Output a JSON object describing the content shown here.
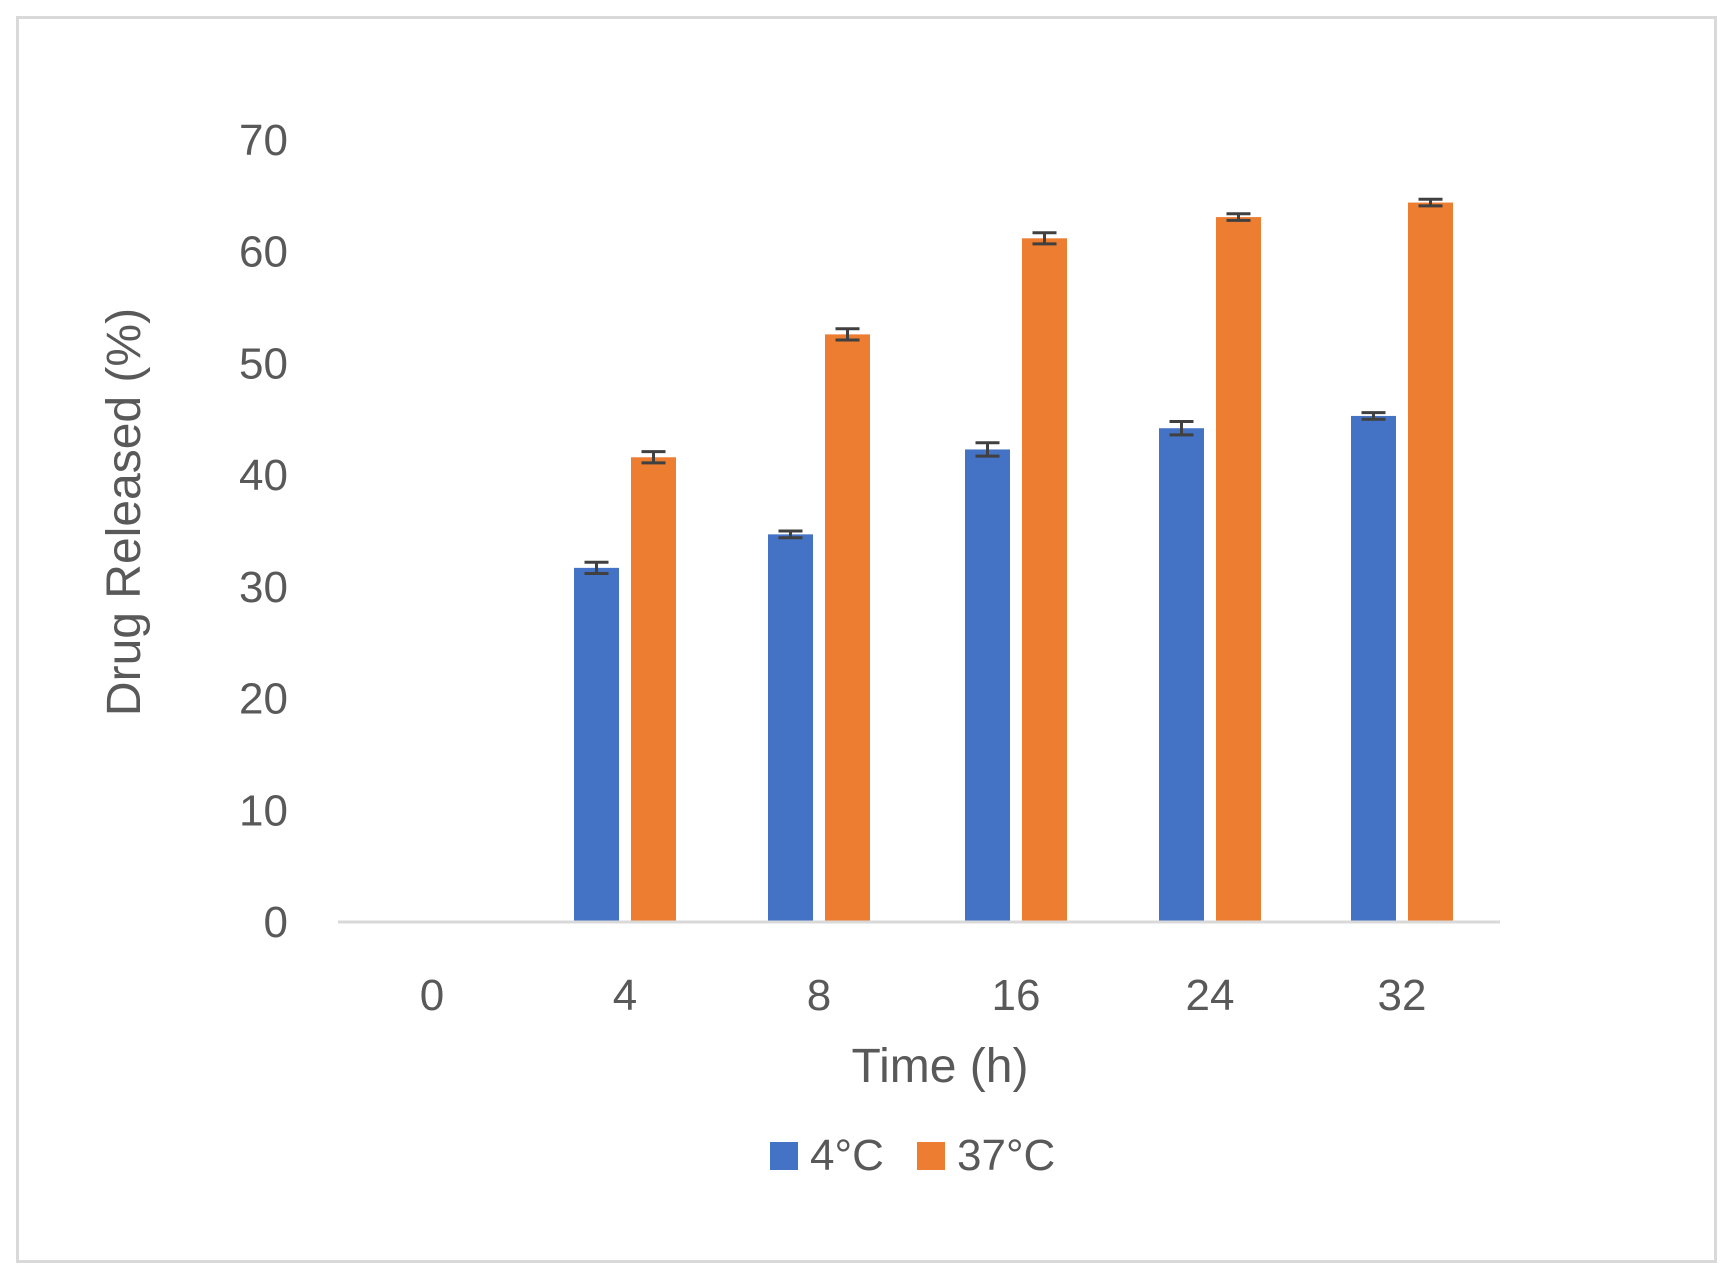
{
  "chart_data": {
    "type": "bar",
    "title": "",
    "xlabel": "Time (h)",
    "ylabel": "Drug Released (%)",
    "categories": [
      "0",
      "4",
      "8",
      "16",
      "24",
      "32"
    ],
    "ylim": [
      0,
      70
    ],
    "yticks": [
      0,
      10,
      20,
      30,
      40,
      50,
      60,
      70
    ],
    "grid": false,
    "legend_position": "bottom-center",
    "series": [
      {
        "name": "4°C",
        "color": "#4472c4",
        "values": [
          0,
          31.7,
          34.7,
          42.3,
          44.2,
          45.3
        ],
        "errors": [
          0,
          0.5,
          0.3,
          0.6,
          0.6,
          0.3
        ]
      },
      {
        "name": "37°C",
        "color": "#ed7d31",
        "values": [
          0,
          41.6,
          52.6,
          61.2,
          63.1,
          64.4
        ],
        "errors": [
          0,
          0.5,
          0.5,
          0.5,
          0.3,
          0.3
        ]
      }
    ],
    "axis_color": "#d9d9d9",
    "error_bar_color": "#404040"
  }
}
